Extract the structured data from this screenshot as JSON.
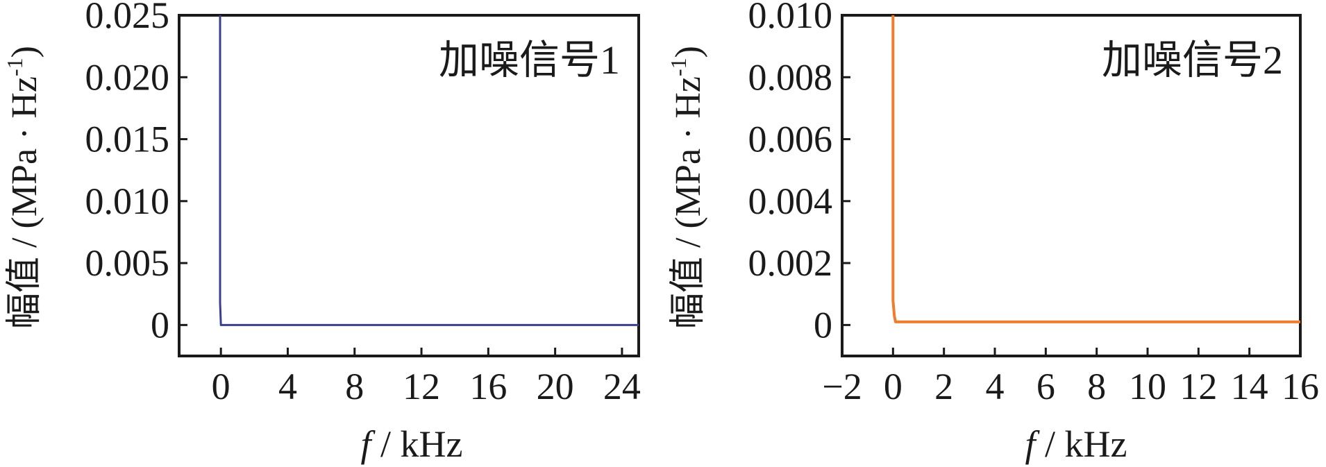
{
  "chart_data": [
    {
      "type": "line",
      "annotation": "加噪信号1",
      "xlabel_var": "f",
      "xlabel_unit": " / kHz",
      "ylabel_main": "幅值 / (MPa · Hz",
      "ylabel_sup": "-1",
      "ylabel_close": ")",
      "xlim": [
        -2.5,
        25
      ],
      "ylim": [
        -0.0025,
        0.025
      ],
      "xticks": [
        0,
        4,
        8,
        12,
        16,
        20,
        24
      ],
      "xtick_labels": [
        "0",
        "4",
        "8",
        "12",
        "16",
        "20",
        "24"
      ],
      "yticks": [
        0,
        0.005,
        0.01,
        0.015,
        0.02,
        0.025
      ],
      "ytick_labels": [
        "0",
        "0.005",
        "0.010",
        "0.015",
        "0.020",
        "0.025"
      ],
      "series": [
        {
          "color": "#3b3f8f",
          "x": [
            -0.05,
            -0.05,
            0.0,
            0.02,
            0.1,
            5,
            10,
            15,
            20,
            25
          ],
          "y": [
            0.025,
            0.0018,
            0.0,
            0.0,
            0.0,
            0.0,
            0.0,
            0.0,
            0.0,
            0.0
          ]
        }
      ]
    },
    {
      "type": "line",
      "annotation": "加噪信号2",
      "xlabel_var": "f",
      "xlabel_unit": " / kHz",
      "ylabel_main": "幅值 / (MPa · Hz",
      "ylabel_sup": "-1",
      "ylabel_close": ")",
      "xlim": [
        -2,
        16
      ],
      "ylim": [
        -0.001,
        0.01
      ],
      "xticks": [
        -2,
        0,
        2,
        4,
        6,
        8,
        10,
        12,
        14,
        16
      ],
      "xtick_labels": [
        "−2",
        "0",
        "2",
        "4",
        "6",
        "8",
        "10",
        "12",
        "14",
        "16"
      ],
      "yticks": [
        0,
        0.002,
        0.004,
        0.006,
        0.008,
        0.01
      ],
      "ytick_labels": [
        "0",
        "0.002",
        "0.004",
        "0.006",
        "0.008",
        "0.010"
      ],
      "series": [
        {
          "color": "#f07c2c",
          "x": [
            0.0,
            0.0,
            0.05,
            0.1,
            0.15,
            2,
            4,
            6,
            8,
            10,
            12,
            14,
            16
          ],
          "y": [
            0.01,
            0.0008,
            0.0003,
            0.0001,
            0.0001,
            0.0001,
            0.0001,
            0.0001,
            0.0001,
            0.0001,
            0.0001,
            0.0001,
            0.0001
          ]
        }
      ]
    }
  ]
}
